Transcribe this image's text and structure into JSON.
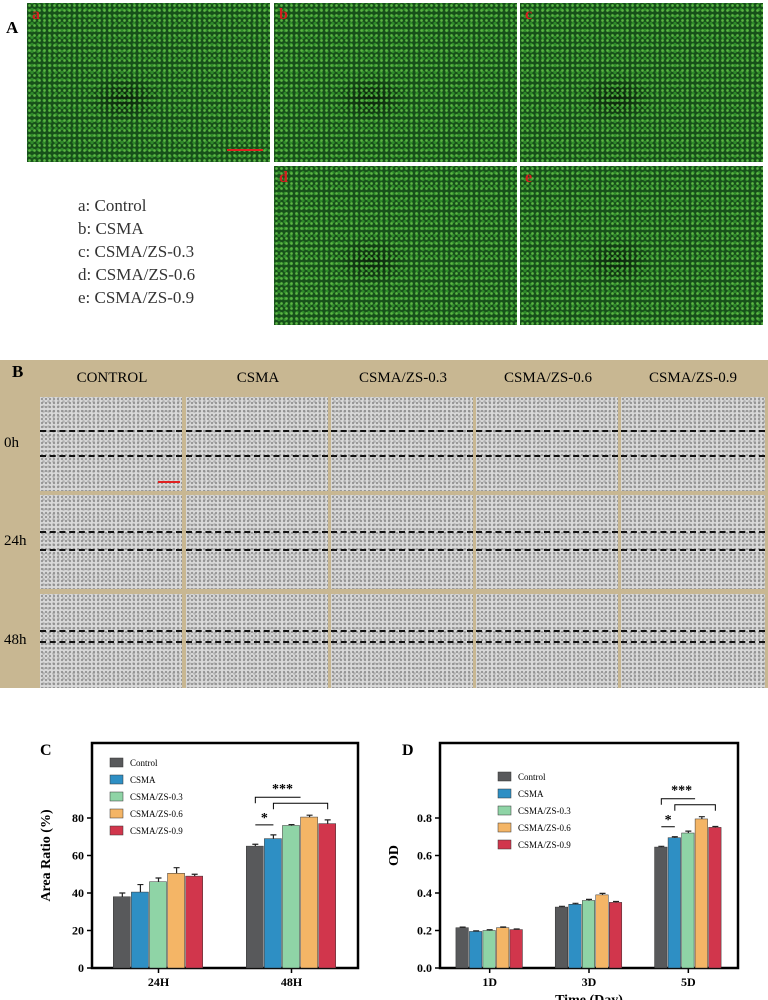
{
  "panel_a": {
    "label": "A",
    "images": [
      "a",
      "b",
      "c",
      "d",
      "e"
    ],
    "legend": [
      "a: Control",
      "b: CSMA",
      "c: CSMA/ZS-0.3",
      "d: CSMA/ZS-0.6",
      "e: CSMA/ZS-0.9"
    ]
  },
  "panel_b": {
    "label": "B",
    "columns": [
      "CONTROL",
      "CSMA",
      "CSMA/ZS-0.3",
      "CSMA/ZS-0.6",
      "CSMA/ZS-0.9"
    ],
    "rows": [
      "0h",
      "24h",
      "48h"
    ]
  },
  "chart_data": [
    {
      "type": "bar",
      "panel": "C",
      "ylabel": "Area Ratio (%)",
      "categories": [
        "24H",
        "48H"
      ],
      "series": [
        {
          "name": "Control",
          "color": "#58595b",
          "values": [
            38,
            65
          ],
          "errors": [
            2,
            1
          ]
        },
        {
          "name": "CSMA",
          "color": "#2e8fc4",
          "values": [
            40.5,
            69
          ],
          "errors": [
            4,
            2
          ]
        },
        {
          "name": "CSMA/ZS-0.3",
          "color": "#8fd4a6",
          "values": [
            46,
            76
          ],
          "errors": [
            2,
            0.5
          ]
        },
        {
          "name": "CSMA/ZS-0.6",
          "color": "#f4b566",
          "values": [
            50.5,
            80.5
          ],
          "errors": [
            3,
            1
          ]
        },
        {
          "name": "CSMA/ZS-0.9",
          "color": "#d1364c",
          "values": [
            49,
            77
          ],
          "errors": [
            1,
            2
          ]
        }
      ],
      "ylim": [
        0,
        120
      ],
      "yticks": [
        0,
        20,
        40,
        60,
        80
      ],
      "annotations": [
        "*",
        "***"
      ]
    },
    {
      "type": "bar",
      "panel": "D",
      "ylabel": "OD",
      "xlabel": "Time (Day)",
      "categories": [
        "1D",
        "3D",
        "5D"
      ],
      "series": [
        {
          "name": "Control",
          "color": "#58595b",
          "values": [
            0.215,
            0.325,
            0.645
          ],
          "errors": [
            0.003,
            0.004,
            0.004
          ]
        },
        {
          "name": "CSMA",
          "color": "#2e8fc4",
          "values": [
            0.195,
            0.34,
            0.695
          ],
          "errors": [
            0.003,
            0.005,
            0.005
          ]
        },
        {
          "name": "CSMA/ZS-0.3",
          "color": "#8fd4a6",
          "values": [
            0.2,
            0.36,
            0.72
          ],
          "errors": [
            0.004,
            0.006,
            0.01
          ]
        },
        {
          "name": "CSMA/ZS-0.6",
          "color": "#f4b566",
          "values": [
            0.215,
            0.39,
            0.795
          ],
          "errors": [
            0.004,
            0.008,
            0.012
          ]
        },
        {
          "name": "CSMA/ZS-0.9",
          "color": "#d1364c",
          "values": [
            0.205,
            0.35,
            0.75
          ],
          "errors": [
            0.003,
            0.005,
            0.005
          ]
        }
      ],
      "ylim": [
        0,
        1.2
      ],
      "yticks": [
        {
          "value": 0,
          "label": "0.0"
        },
        0.2,
        0.4,
        0.6,
        0.8
      ],
      "annotations": [
        "*",
        "***"
      ]
    }
  ]
}
